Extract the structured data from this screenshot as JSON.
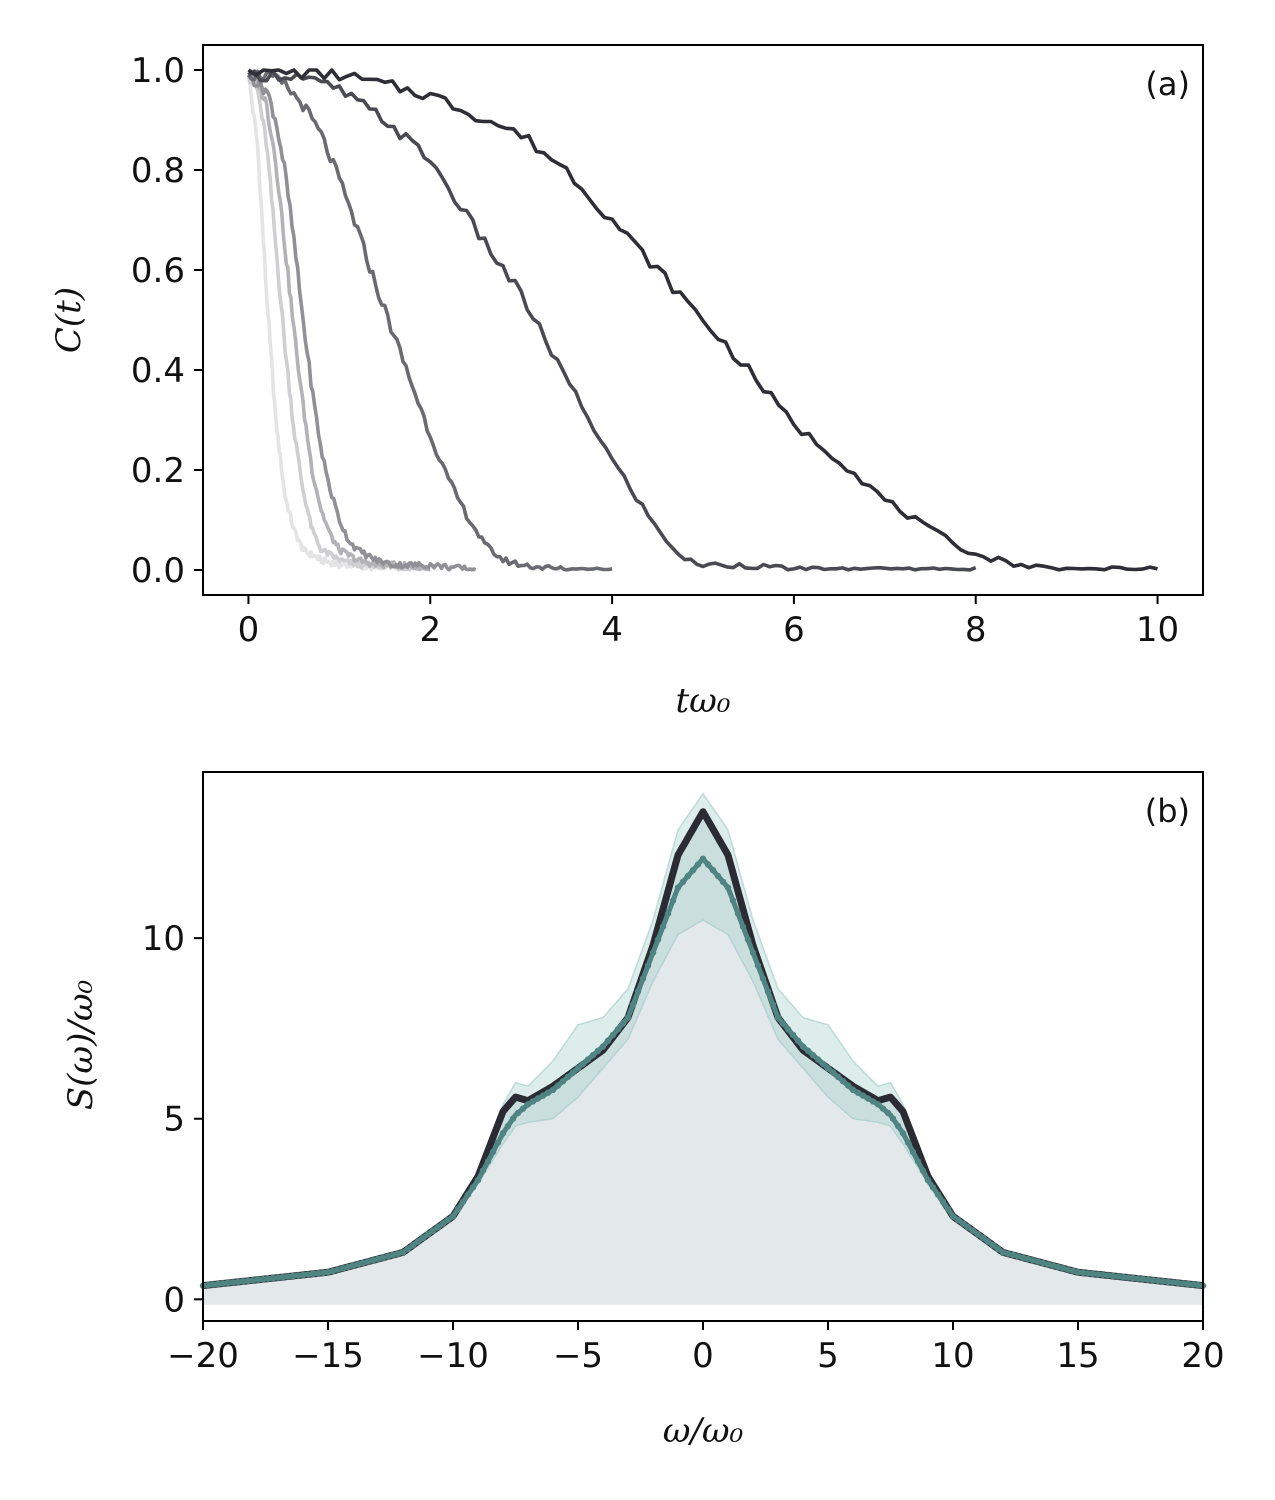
{
  "chart_data": [
    {
      "type": "line",
      "panel_label": "(a)",
      "xlabel": "tω₀",
      "ylabel": "C(t)",
      "xlim": [
        -0.5,
        10.5
      ],
      "ylim": [
        -0.05,
        1.05
      ],
      "xticks": [
        0,
        2,
        4,
        6,
        8,
        10
      ],
      "xtick_labels": [
        "0",
        "2",
        "4",
        "6",
        "8",
        "10"
      ],
      "yticks": [
        0.0,
        0.2,
        0.4,
        0.6,
        0.8,
        1.0
      ],
      "ytick_labels": [
        "0.0",
        "0.2",
        "0.4",
        "0.6",
        "0.8",
        "1.0"
      ],
      "series": [
        {
          "name": "curve-1",
          "color": "#e4e4e4",
          "t_end": 1.5,
          "x": [
            0,
            0.1,
            0.2,
            0.3,
            0.4,
            0.5,
            0.6,
            0.8,
            1.0,
            1.2,
            1.5
          ],
          "y": [
            0.99,
            0.85,
            0.55,
            0.3,
            0.15,
            0.08,
            0.04,
            0.02,
            0.01,
            0.01,
            0.0
          ]
        },
        {
          "name": "curve-2",
          "color": "#cfcfd1",
          "t_end": 1.8,
          "x": [
            0,
            0.1,
            0.2,
            0.3,
            0.4,
            0.5,
            0.6,
            0.7,
            0.8,
            1.0,
            1.2,
            1.5,
            1.8
          ],
          "y": [
            0.99,
            0.96,
            0.85,
            0.65,
            0.45,
            0.28,
            0.16,
            0.08,
            0.04,
            0.02,
            0.01,
            0.01,
            0.0
          ]
        },
        {
          "name": "curve-3",
          "color": "#b3b3b7",
          "t_end": 2.0,
          "x": [
            0,
            0.1,
            0.2,
            0.3,
            0.4,
            0.5,
            0.6,
            0.7,
            0.8,
            0.9,
            1.0,
            1.2,
            1.4,
            1.7,
            2.0
          ],
          "y": [
            0.99,
            0.98,
            0.93,
            0.82,
            0.65,
            0.48,
            0.33,
            0.2,
            0.12,
            0.07,
            0.04,
            0.02,
            0.01,
            0.01,
            0.0
          ]
        },
        {
          "name": "curve-4",
          "color": "#909096",
          "t_end": 2.5,
          "x": [
            0,
            0.2,
            0.3,
            0.4,
            0.5,
            0.6,
            0.7,
            0.8,
            0.9,
            1.0,
            1.1,
            1.2,
            1.4,
            1.6,
            2.0,
            2.5
          ],
          "y": [
            0.99,
            0.96,
            0.9,
            0.8,
            0.66,
            0.5,
            0.36,
            0.24,
            0.16,
            0.1,
            0.06,
            0.04,
            0.02,
            0.01,
            0.01,
            0.0
          ]
        },
        {
          "name": "curve-5",
          "color": "#6a6a71",
          "t_end": 4.0,
          "x": [
            0,
            0.2,
            0.4,
            0.6,
            0.8,
            1.0,
            1.2,
            1.4,
            1.6,
            1.8,
            2.0,
            2.2,
            2.4,
            2.6,
            2.8,
            3.0,
            3.5,
            4.0
          ],
          "y": [
            0.99,
            0.99,
            0.97,
            0.93,
            0.87,
            0.78,
            0.68,
            0.57,
            0.47,
            0.37,
            0.27,
            0.18,
            0.11,
            0.05,
            0.02,
            0.01,
            0.0,
            0.0
          ]
        },
        {
          "name": "curve-6",
          "color": "#4a4a52",
          "t_end": 8.0,
          "x": [
            0,
            0.5,
            1.0,
            1.5,
            2.0,
            2.5,
            3.0,
            3.5,
            4.0,
            4.5,
            4.8,
            5.0,
            5.5,
            6.0,
            7.0,
            8.0
          ],
          "y": [
            0.99,
            0.99,
            0.96,
            0.9,
            0.82,
            0.68,
            0.55,
            0.38,
            0.22,
            0.08,
            0.02,
            0.01,
            0.01,
            0.0,
            0.0,
            0.0
          ]
        },
        {
          "name": "curve-7",
          "color": "#2e2e36",
          "t_end": 10.0,
          "x": [
            0,
            1.0,
            2.0,
            3.0,
            3.5,
            4.0,
            4.5,
            5.0,
            5.5,
            6.0,
            6.5,
            7.0,
            7.5,
            8.0,
            8.5,
            9.0,
            9.5,
            10.0
          ],
          "y": [
            1.0,
            0.99,
            0.95,
            0.87,
            0.8,
            0.7,
            0.6,
            0.5,
            0.4,
            0.29,
            0.22,
            0.14,
            0.08,
            0.03,
            0.01,
            0.0,
            0.0,
            0.0
          ]
        }
      ]
    },
    {
      "type": "line",
      "panel_label": "(b)",
      "xlabel": "ω/ω₀",
      "ylabel": "S(ω)/ω₀",
      "xlim": [
        -20,
        20
      ],
      "ylim": [
        -0.6,
        14.6
      ],
      "xticks": [
        -20,
        -15,
        -10,
        -5,
        0,
        5,
        10,
        15,
        20
      ],
      "xtick_labels": [
        "−20",
        "−15",
        "−10",
        "−5",
        "0",
        "5",
        "10",
        "15",
        "20"
      ],
      "yticks": [
        0,
        5,
        10
      ],
      "ytick_labels": [
        "0",
        "5",
        "10"
      ],
      "filled_area": {
        "color": "#e3e8eb",
        "ymin": -0.15
      },
      "band": {
        "color": "#9ccac6",
        "opacity": 0.35
      },
      "series": [
        {
          "name": "thick-dark-curve",
          "color": "#2b2b33",
          "x": [
            0,
            1,
            2,
            3,
            4,
            5,
            6,
            7,
            7.5,
            8,
            9,
            10,
            12,
            15,
            20
          ],
          "y": [
            13.5,
            12.3,
            9.8,
            7.8,
            6.9,
            6.4,
            5.9,
            5.5,
            5.6,
            5.2,
            3.4,
            2.3,
            1.3,
            0.75,
            0.38
          ]
        },
        {
          "name": "teal-dotted-curve",
          "color": "#4f8482",
          "x": [
            0,
            1,
            2,
            3,
            4,
            5,
            6,
            7,
            7.5,
            8,
            9,
            10,
            12,
            15,
            20
          ],
          "y": [
            12.2,
            11.4,
            9.6,
            7.8,
            7.0,
            6.4,
            5.8,
            5.4,
            5.1,
            4.6,
            3.3,
            2.3,
            1.3,
            0.75,
            0.38
          ]
        },
        {
          "name": "band-upper",
          "color": "#9ccac6",
          "x": [
            0,
            1,
            2,
            3,
            4,
            5,
            6,
            7,
            7.5,
            8,
            9,
            10,
            12,
            15,
            20
          ],
          "y": [
            14.0,
            13.0,
            10.5,
            8.6,
            7.8,
            7.6,
            6.6,
            5.9,
            6.0,
            5.4,
            3.5,
            2.4,
            1.35,
            0.78,
            0.4
          ]
        },
        {
          "name": "band-lower",
          "color": "#9ccac6",
          "x": [
            0,
            1,
            2,
            3,
            4,
            5,
            6,
            7,
            7.5,
            8,
            9,
            10,
            12,
            15,
            20
          ],
          "y": [
            10.5,
            10.1,
            8.8,
            7.2,
            6.4,
            5.6,
            5.0,
            4.9,
            4.8,
            4.3,
            3.2,
            2.2,
            1.25,
            0.72,
            0.36
          ]
        }
      ]
    }
  ]
}
